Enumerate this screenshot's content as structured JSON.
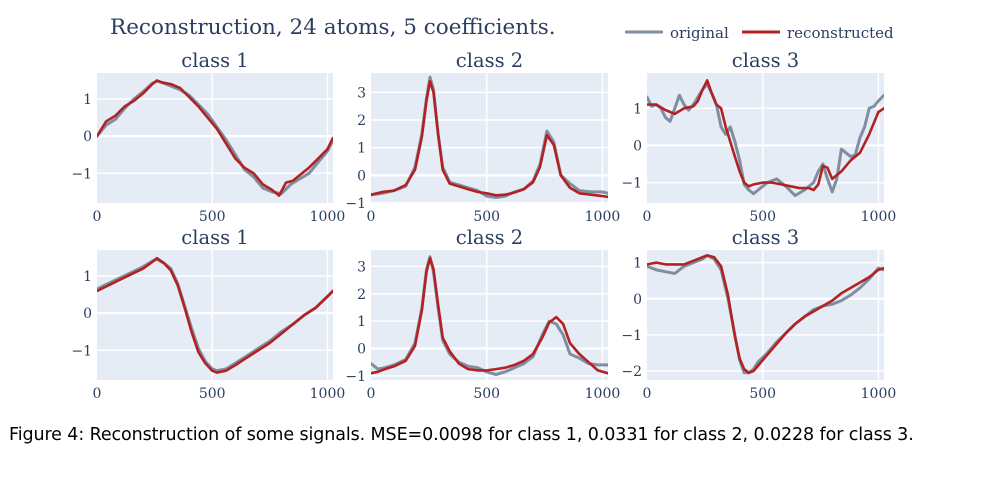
{
  "figure": {
    "title": "Reconstruction, 24 atoms, 5 coefficients.",
    "caption": "Figure 4: Reconstruction of some signals. MSE=0.0098 for class 1, 0.0331 for class 2, 0.0228 for class 3."
  },
  "legend": {
    "placement": "top-right",
    "items": [
      {
        "label": "original",
        "color": "#7f8ea0"
      },
      {
        "label": "reconstructed",
        "color": "#b22222"
      }
    ]
  },
  "chart_data": [
    {
      "type": "line",
      "title": "class 1",
      "xlim": [
        0,
        1024
      ],
      "ylim": [
        -1.8,
        1.7
      ],
      "xticks": [
        0,
        500,
        1000
      ],
      "yticks": [
        -1,
        0,
        1
      ],
      "series": [
        {
          "name": "original",
          "x": [
            0,
            40,
            80,
            120,
            160,
            200,
            240,
            260,
            280,
            320,
            360,
            400,
            440,
            480,
            520,
            560,
            600,
            640,
            680,
            720,
            760,
            800,
            840,
            880,
            920,
            960,
            1000,
            1024
          ],
          "y": [
            0,
            0.3,
            0.45,
            0.75,
            1.0,
            1.2,
            1.42,
            1.48,
            1.45,
            1.35,
            1.25,
            1.1,
            0.85,
            0.6,
            0.25,
            -0.1,
            -0.5,
            -0.9,
            -1.1,
            -1.4,
            -1.5,
            -1.55,
            -1.3,
            -1.15,
            -1.0,
            -0.7,
            -0.4,
            -0.1
          ]
        },
        {
          "name": "reconstructed",
          "x": [
            0,
            40,
            80,
            120,
            160,
            200,
            240,
            260,
            280,
            320,
            360,
            400,
            440,
            480,
            520,
            560,
            600,
            640,
            680,
            720,
            760,
            790,
            820,
            850,
            880,
            920,
            960,
            1000,
            1024
          ],
          "y": [
            0,
            0.4,
            0.55,
            0.8,
            0.95,
            1.15,
            1.4,
            1.5,
            1.45,
            1.4,
            1.3,
            1.05,
            0.8,
            0.5,
            0.2,
            -0.2,
            -0.6,
            -0.85,
            -1.0,
            -1.3,
            -1.45,
            -1.6,
            -1.25,
            -1.2,
            -1.05,
            -0.85,
            -0.6,
            -0.35,
            -0.05
          ]
        }
      ]
    },
    {
      "type": "line",
      "title": "class 2",
      "xlim": [
        0,
        1024
      ],
      "ylim": [
        -1.0,
        3.7
      ],
      "xticks": [
        0,
        500,
        1000
      ],
      "yticks": [
        -1,
        0,
        1,
        2,
        3
      ],
      "series": [
        {
          "name": "original",
          "x": [
            0,
            50,
            100,
            150,
            190,
            220,
            240,
            255,
            270,
            290,
            310,
            340,
            380,
            420,
            460,
            500,
            540,
            580,
            620,
            660,
            700,
            730,
            760,
            790,
            820,
            860,
            900,
            950,
            1000,
            1024
          ],
          "y": [
            -0.7,
            -0.65,
            -0.55,
            -0.4,
            0.3,
            1.5,
            2.8,
            3.55,
            3.1,
            1.5,
            0.3,
            -0.25,
            -0.35,
            -0.45,
            -0.55,
            -0.75,
            -0.8,
            -0.75,
            -0.6,
            -0.5,
            -0.2,
            0.4,
            1.6,
            1.2,
            0.0,
            -0.3,
            -0.55,
            -0.6,
            -0.6,
            -0.65
          ]
        },
        {
          "name": "reconstructed",
          "x": [
            0,
            50,
            100,
            150,
            190,
            220,
            240,
            255,
            270,
            290,
            310,
            340,
            380,
            420,
            460,
            500,
            540,
            580,
            620,
            660,
            700,
            730,
            760,
            790,
            820,
            860,
            900,
            950,
            1000,
            1024
          ],
          "y": [
            -0.7,
            -0.6,
            -0.55,
            -0.35,
            0.2,
            1.4,
            2.7,
            3.4,
            3.0,
            1.5,
            0.2,
            -0.3,
            -0.4,
            -0.5,
            -0.6,
            -0.65,
            -0.72,
            -0.7,
            -0.62,
            -0.5,
            -0.25,
            0.3,
            1.45,
            1.1,
            0.0,
            -0.45,
            -0.65,
            -0.7,
            -0.75,
            -0.78
          ]
        }
      ]
    },
    {
      "type": "line",
      "title": "class 3",
      "xlim": [
        0,
        1024
      ],
      "ylim": [
        -1.55,
        1.95
      ],
      "xticks": [
        0,
        500,
        1000
      ],
      "yticks": [
        -1,
        0,
        1
      ],
      "series": [
        {
          "name": "original",
          "x": [
            0,
            20,
            40,
            60,
            80,
            100,
            120,
            140,
            160,
            180,
            200,
            220,
            240,
            260,
            280,
            300,
            320,
            340,
            360,
            380,
            400,
            420,
            440,
            460,
            480,
            500,
            520,
            560,
            600,
            640,
            680,
            720,
            740,
            760,
            780,
            800,
            820,
            840,
            860,
            880,
            900,
            920,
            940,
            960,
            980,
            1000,
            1024
          ],
          "y": [
            1.3,
            1.05,
            1.1,
            1.0,
            0.75,
            0.65,
            1.0,
            1.35,
            1.1,
            0.95,
            1.1,
            1.3,
            1.5,
            1.65,
            1.4,
            1.1,
            0.5,
            0.3,
            0.5,
            0.1,
            -0.4,
            -1.05,
            -1.2,
            -1.3,
            -1.2,
            -1.1,
            -1.0,
            -0.9,
            -1.1,
            -1.35,
            -1.2,
            -1.0,
            -0.7,
            -0.5,
            -0.9,
            -1.25,
            -0.9,
            -0.1,
            -0.2,
            -0.3,
            -0.25,
            0.2,
            0.5,
            1.0,
            1.05,
            1.2,
            1.35
          ]
        },
        {
          "name": "reconstructed",
          "x": [
            0,
            40,
            80,
            120,
            160,
            200,
            220,
            240,
            260,
            280,
            300,
            320,
            340,
            360,
            380,
            400,
            420,
            440,
            460,
            500,
            540,
            580,
            620,
            660,
            700,
            720,
            740,
            760,
            780,
            800,
            840,
            880,
            920,
            960,
            1000,
            1024
          ],
          "y": [
            1.1,
            1.1,
            0.95,
            0.85,
            1.0,
            1.05,
            1.2,
            1.5,
            1.75,
            1.4,
            1.1,
            1.0,
            0.5,
            0.1,
            -0.3,
            -0.7,
            -1.0,
            -1.1,
            -1.05,
            -1.0,
            -1.0,
            -1.05,
            -1.1,
            -1.15,
            -1.15,
            -1.2,
            -1.05,
            -0.55,
            -0.6,
            -0.9,
            -0.7,
            -0.4,
            -0.2,
            0.3,
            0.9,
            1.0
          ]
        }
      ]
    },
    {
      "type": "line",
      "title": "class 1",
      "xlim": [
        0,
        1024
      ],
      "ylim": [
        -1.8,
        1.7
      ],
      "xticks": [
        0,
        500,
        1000
      ],
      "yticks": [
        -1,
        0,
        1
      ],
      "series": [
        {
          "name": "original",
          "x": [
            0,
            50,
            100,
            150,
            200,
            240,
            260,
            290,
            320,
            350,
            380,
            410,
            440,
            470,
            500,
            520,
            560,
            600,
            650,
            700,
            750,
            800,
            850,
            900,
            950,
            1000,
            1024
          ],
          "y": [
            0.65,
            0.8,
            0.95,
            1.1,
            1.25,
            1.4,
            1.45,
            1.35,
            1.2,
            0.8,
            0.2,
            -0.4,
            -0.95,
            -1.3,
            -1.5,
            -1.55,
            -1.5,
            -1.35,
            -1.15,
            -0.95,
            -0.75,
            -0.5,
            -0.3,
            -0.05,
            0.15,
            0.45,
            0.6
          ]
        },
        {
          "name": "reconstructed",
          "x": [
            0,
            50,
            100,
            150,
            200,
            240,
            260,
            290,
            320,
            350,
            380,
            410,
            440,
            470,
            500,
            520,
            560,
            600,
            650,
            700,
            750,
            800,
            850,
            900,
            950,
            1000,
            1024
          ],
          "y": [
            0.6,
            0.75,
            0.9,
            1.05,
            1.2,
            1.38,
            1.48,
            1.35,
            1.15,
            0.75,
            0.15,
            -0.5,
            -1.05,
            -1.35,
            -1.55,
            -1.6,
            -1.55,
            -1.4,
            -1.2,
            -1.0,
            -0.8,
            -0.55,
            -0.3,
            -0.05,
            0.15,
            0.45,
            0.6
          ]
        }
      ]
    },
    {
      "type": "line",
      "title": "class 2",
      "xlim": [
        0,
        1024
      ],
      "ylim": [
        -1.15,
        3.6
      ],
      "xticks": [
        0,
        500,
        1000
      ],
      "yticks": [
        -1,
        0,
        1,
        2,
        3
      ],
      "series": [
        {
          "name": "original",
          "x": [
            0,
            30,
            60,
            100,
            150,
            190,
            220,
            240,
            255,
            270,
            290,
            310,
            340,
            380,
            420,
            460,
            500,
            540,
            580,
            620,
            660,
            700,
            740,
            770,
            800,
            830,
            860,
            900,
            940,
            980,
            1024
          ],
          "y": [
            -0.55,
            -0.75,
            -0.7,
            -0.6,
            -0.4,
            0.2,
            1.5,
            2.9,
            3.35,
            2.8,
            1.5,
            0.3,
            -0.2,
            -0.5,
            -0.65,
            -0.7,
            -0.85,
            -0.95,
            -0.85,
            -0.7,
            -0.55,
            -0.3,
            0.5,
            1.0,
            0.9,
            0.5,
            -0.2,
            -0.35,
            -0.55,
            -0.6,
            -0.6
          ]
        },
        {
          "name": "reconstructed",
          "x": [
            0,
            30,
            60,
            100,
            150,
            190,
            220,
            240,
            255,
            270,
            290,
            310,
            340,
            380,
            420,
            460,
            500,
            540,
            580,
            620,
            660,
            700,
            740,
            770,
            800,
            830,
            860,
            900,
            940,
            980,
            1024
          ],
          "y": [
            -0.9,
            -0.85,
            -0.75,
            -0.65,
            -0.45,
            0.1,
            1.4,
            2.8,
            3.3,
            2.9,
            1.6,
            0.4,
            -0.1,
            -0.55,
            -0.75,
            -0.8,
            -0.8,
            -0.75,
            -0.7,
            -0.6,
            -0.45,
            -0.2,
            0.4,
            0.95,
            1.15,
            0.9,
            0.2,
            -0.2,
            -0.5,
            -0.8,
            -0.9
          ]
        }
      ]
    },
    {
      "type": "line",
      "title": "class 3",
      "xlim": [
        0,
        1024
      ],
      "ylim": [
        -2.25,
        1.35
      ],
      "xticks": [
        0,
        500,
        1000
      ],
      "yticks": [
        -2,
        -1,
        0,
        1
      ],
      "series": [
        {
          "name": "original",
          "x": [
            0,
            40,
            80,
            120,
            160,
            200,
            240,
            260,
            290,
            320,
            350,
            380,
            400,
            420,
            440,
            460,
            480,
            520,
            560,
            600,
            640,
            680,
            720,
            760,
            800,
            840,
            880,
            920,
            960,
            1000,
            1024
          ],
          "y": [
            0.9,
            0.8,
            0.75,
            0.7,
            0.9,
            1.0,
            1.1,
            1.2,
            1.1,
            0.8,
            0.0,
            -1.0,
            -1.7,
            -2.05,
            -2.05,
            -1.95,
            -1.75,
            -1.5,
            -1.2,
            -0.95,
            -0.7,
            -0.5,
            -0.3,
            -0.2,
            -0.15,
            -0.05,
            0.1,
            0.3,
            0.55,
            0.85,
            0.8
          ]
        },
        {
          "name": "reconstructed",
          "x": [
            0,
            40,
            80,
            120,
            160,
            200,
            240,
            260,
            290,
            320,
            350,
            380,
            400,
            420,
            440,
            460,
            480,
            520,
            560,
            600,
            640,
            680,
            720,
            760,
            800,
            840,
            880,
            920,
            960,
            1000,
            1024
          ],
          "y": [
            0.95,
            1.0,
            0.95,
            0.95,
            0.95,
            1.05,
            1.15,
            1.2,
            1.15,
            0.9,
            0.1,
            -1.05,
            -1.65,
            -1.95,
            -2.05,
            -2.0,
            -1.85,
            -1.55,
            -1.25,
            -0.95,
            -0.7,
            -0.5,
            -0.35,
            -0.2,
            -0.05,
            0.15,
            0.3,
            0.45,
            0.6,
            0.8,
            0.85
          ]
        }
      ]
    }
  ]
}
